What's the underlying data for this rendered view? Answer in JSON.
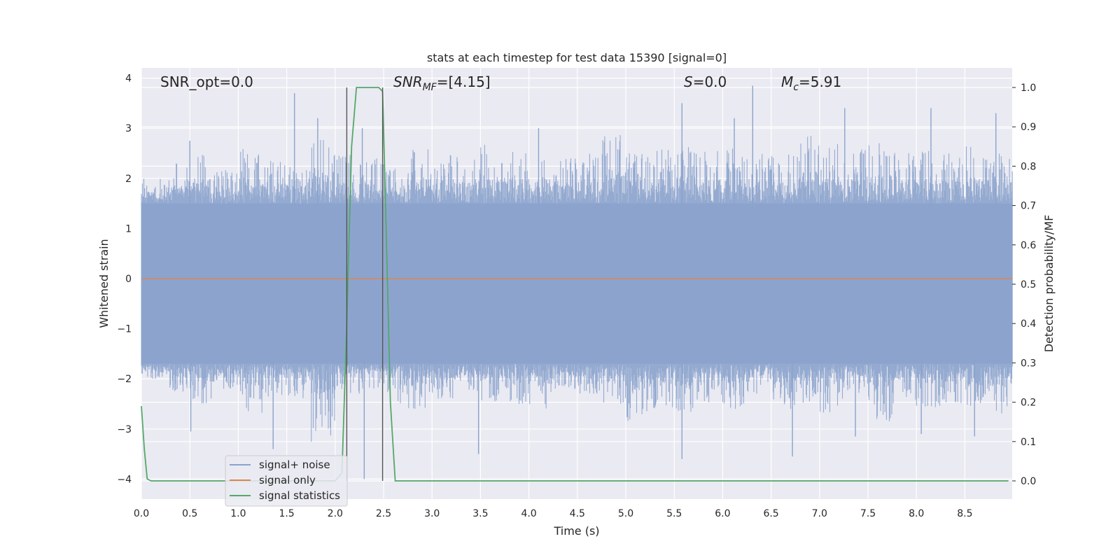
{
  "chart_data": {
    "type": "line",
    "title": "stats at each timestep for test data 15390 [signal=0]",
    "xlabel": "Time (s)",
    "ylabel": "Whitened strain",
    "ylabel_right": "Detection probability/MF",
    "xlim": [
      0.0,
      9.0
    ],
    "ylim": [
      -4.2,
      4.2
    ],
    "ylim_right": [
      -0.05,
      1.04
    ],
    "xticks": [
      "0.0",
      "0.5",
      "1.0",
      "1.5",
      "2.0",
      "2.5",
      "3.0",
      "3.5",
      "4.0",
      "4.5",
      "5.0",
      "5.5",
      "6.0",
      "6.5",
      "7.0",
      "7.5",
      "8.0",
      "8.5"
    ],
    "yticks": [
      "4",
      "3",
      "2",
      "1",
      "0",
      "−1",
      "−2",
      "−3",
      "−4"
    ],
    "yticks_right": [
      "1.0",
      "0.9",
      "0.8",
      "0.7",
      "0.6",
      "0.5",
      "0.4",
      "0.3",
      "0.2",
      "0.1",
      "0.0"
    ],
    "grid": true,
    "legend_position": "lower-left",
    "annotations": {
      "snr_opt": "SNR_opt=0.0",
      "snr_mf_main": "SNR",
      "snr_mf_sub": "MF",
      "snr_mf_val": "=[4.15]",
      "s_main": "S",
      "s_val": "=0.0",
      "mc_main": "M",
      "mc_sub": "c",
      "mc_val": "=5.91"
    },
    "vertical_markers_x": [
      2.12,
      2.49
    ],
    "series": [
      {
        "name": "signal+ noise",
        "color": "#8ba3cc",
        "description_values": "whitened strain noise, roughly within [-1.7, 1.5] with spikes to about +3.8 and -4.0",
        "envelope_upper": [
          2.0,
          2.3,
          2.5,
          2.2,
          2.6,
          2.4,
          2.3,
          2.9,
          2.5,
          2.4,
          2.2,
          2.6,
          2.5,
          2.5,
          2.7,
          2.6,
          2.4,
          2.4,
          2.6,
          2.9,
          2.5,
          2.6,
          2.7,
          2.6,
          2.6,
          2.5,
          2.5,
          2.9,
          2.7,
          2.6,
          2.8,
          2.6,
          2.6,
          2.5,
          2.7,
          2.6
        ],
        "envelope_lower": [
          -2.0,
          -2.3,
          -2.5,
          -2.3,
          -2.7,
          -2.4,
          -2.4,
          -3.3,
          -2.3,
          -2.2,
          -2.5,
          -2.6,
          -2.4,
          -2.3,
          -2.5,
          -2.5,
          -2.6,
          -2.3,
          -2.3,
          -2.5,
          -2.9,
          -2.6,
          -2.7,
          -2.5,
          -2.6,
          -2.3,
          -2.6,
          -2.5,
          -2.7,
          -2.3,
          -2.9,
          -2.5,
          -2.6,
          -2.5,
          -2.6,
          -2.7
        ],
        "spikes": [
          [
            1.58,
            3.7
          ],
          [
            1.82,
            3.2
          ],
          [
            2.28,
            3.0
          ],
          [
            5.58,
            3.5
          ],
          [
            6.12,
            3.2
          ],
          [
            6.31,
            3.85
          ],
          [
            7.26,
            3.4
          ],
          [
            8.15,
            3.4
          ],
          [
            8.82,
            3.3
          ],
          [
            0.5,
            2.75
          ],
          [
            4.1,
            3.0
          ],
          [
            1.36,
            -3.4
          ],
          [
            2.3,
            -4.0
          ],
          [
            2.49,
            -4.0
          ],
          [
            3.48,
            -3.5
          ],
          [
            5.58,
            -3.6
          ],
          [
            6.72,
            -3.55
          ],
          [
            7.37,
            -3.15
          ],
          [
            8.05,
            -3.1
          ],
          [
            8.6,
            -3.15
          ],
          [
            0.51,
            -3.05
          ]
        ]
      },
      {
        "name": "signal only",
        "color": "#dd8452",
        "x": [
          0.0,
          9.0
        ],
        "y": [
          0.0,
          0.0
        ]
      },
      {
        "name": "signal statistics",
        "color": "#55a868",
        "axis": "right",
        "x": [
          0.0,
          0.03,
          0.06,
          0.1,
          1.9,
          2.0,
          2.07,
          2.12,
          2.17,
          2.22,
          2.45,
          2.49,
          2.53,
          2.57,
          2.62,
          8.95
        ],
        "y": [
          0.19,
          0.08,
          0.005,
          0.0,
          0.0,
          0.0,
          0.02,
          0.4,
          0.85,
          1.0,
          1.0,
          0.99,
          0.6,
          0.2,
          0.0,
          0.0
        ]
      }
    ]
  }
}
